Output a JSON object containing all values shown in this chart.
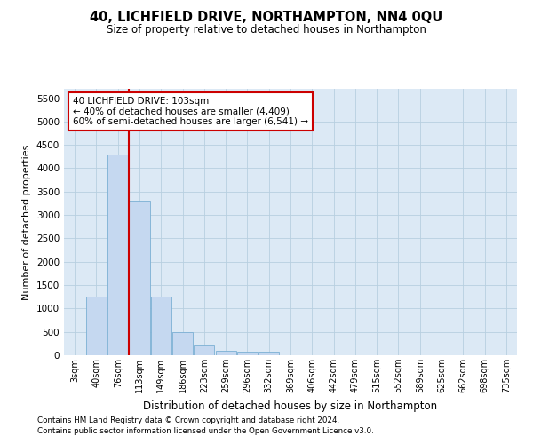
{
  "title": "40, LICHFIELD DRIVE, NORTHAMPTON, NN4 0QU",
  "subtitle": "Size of property relative to detached houses in Northampton",
  "xlabel": "Distribution of detached houses by size in Northampton",
  "ylabel": "Number of detached properties",
  "footnote1": "Contains HM Land Registry data © Crown copyright and database right 2024.",
  "footnote2": "Contains public sector information licensed under the Open Government Licence v3.0.",
  "annotation_line1": "40 LICHFIELD DRIVE: 103sqm",
  "annotation_line2": "← 40% of detached houses are smaller (4,409)",
  "annotation_line3": "60% of semi-detached houses are larger (6,541) →",
  "bar_color": "#c5d8f0",
  "bar_edge_color": "#7bafd4",
  "vline_color": "#cc0000",
  "categories": [
    "3sqm",
    "40sqm",
    "76sqm",
    "113sqm",
    "149sqm",
    "186sqm",
    "223sqm",
    "259sqm",
    "296sqm",
    "332sqm",
    "369sqm",
    "406sqm",
    "442sqm",
    "479sqm",
    "515sqm",
    "552sqm",
    "589sqm",
    "625sqm",
    "662sqm",
    "698sqm",
    "735sqm"
  ],
  "values": [
    0,
    1250,
    4300,
    3300,
    1250,
    500,
    200,
    100,
    75,
    75,
    0,
    0,
    0,
    0,
    0,
    0,
    0,
    0,
    0,
    0,
    0
  ],
  "ylim": [
    0,
    5700
  ],
  "yticks": [
    0,
    500,
    1000,
    1500,
    2000,
    2500,
    3000,
    3500,
    4000,
    4500,
    5000,
    5500
  ],
  "background_color": "#ffffff",
  "plot_bg_color": "#dce9f5",
  "grid_color": "#b8cfe0"
}
